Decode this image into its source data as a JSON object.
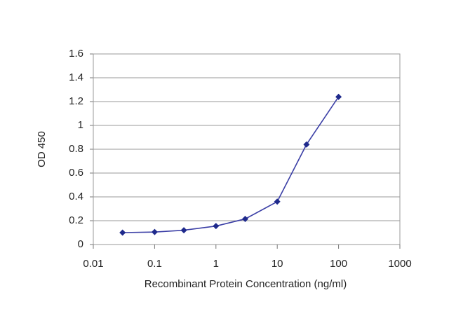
{
  "chart_data": {
    "type": "line",
    "x_label": "Recombinant Protein Concentration (ng/ml)",
    "y_label": "OD 450",
    "x": [
      0.03,
      0.1,
      0.3,
      1,
      3,
      10,
      30,
      100
    ],
    "series": [
      {
        "name": "OD 450",
        "color": "#3b3fa6",
        "values": [
          0.1,
          0.105,
          0.12,
          0.155,
          0.215,
          0.36,
          0.84,
          1.24
        ]
      }
    ],
    "xlim": [
      0.01,
      1000
    ],
    "xticks": [
      0.01,
      0.1,
      1,
      10,
      100,
      1000
    ],
    "xscale": "log",
    "ylim": [
      0,
      1.6
    ],
    "yticks": [
      0,
      0.2,
      0.4,
      0.6,
      0.8,
      1,
      1.2,
      1.4,
      1.6
    ],
    "grid": true
  }
}
